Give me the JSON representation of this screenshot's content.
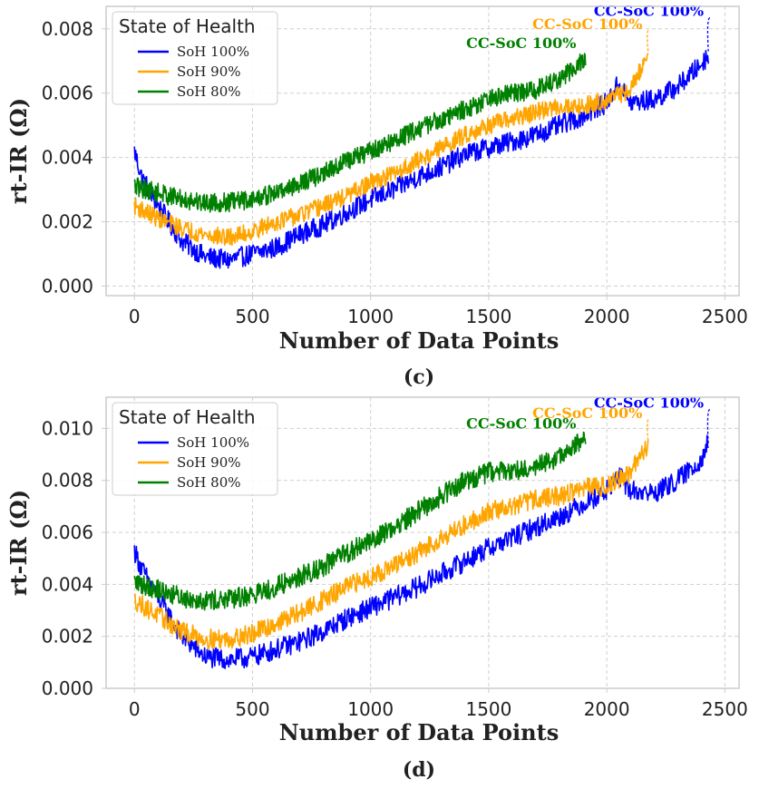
{
  "chart_data": [
    {
      "type": "line",
      "panel_label": "(c)",
      "xlabel": "Number of Data Points",
      "ylabel": "rt-IR (Ω)",
      "xlim": [
        -120,
        2560
      ],
      "ylim": [
        -0.0003,
        0.0087
      ],
      "xticks": [
        0,
        500,
        1000,
        1500,
        2000,
        2500
      ],
      "xtick_labels": [
        "0",
        "500",
        "1000",
        "1500",
        "2000",
        "2500"
      ],
      "yticks": [
        0.0,
        0.002,
        0.004,
        0.006,
        0.008
      ],
      "ytick_labels": [
        "0.000",
        "0.002",
        "0.004",
        "0.006",
        "0.008"
      ],
      "grid": true,
      "legend": {
        "title": "State of Health",
        "position": "upper-left"
      },
      "series": [
        {
          "name": "SoH 100%",
          "color": "#0000ff",
          "noise": 0.00032,
          "points": [
            [
              0,
              0.0042
            ],
            [
              30,
              0.0034
            ],
            [
              100,
              0.0025
            ],
            [
              200,
              0.0014
            ],
            [
              300,
              0.0009
            ],
            [
              400,
              0.0008
            ],
            [
              500,
              0.001
            ],
            [
              600,
              0.0012
            ],
            [
              700,
              0.0016
            ],
            [
              800,
              0.0019
            ],
            [
              900,
              0.0023
            ],
            [
              1000,
              0.0027
            ],
            [
              1100,
              0.003
            ],
            [
              1200,
              0.0034
            ],
            [
              1300,
              0.0037
            ],
            [
              1400,
              0.0041
            ],
            [
              1500,
              0.0043
            ],
            [
              1600,
              0.0045
            ],
            [
              1700,
              0.0047
            ],
            [
              1800,
              0.005
            ],
            [
              1900,
              0.0053
            ],
            [
              2000,
              0.0057
            ],
            [
              2050,
              0.0063
            ],
            [
              2100,
              0.0057
            ],
            [
              2200,
              0.0058
            ],
            [
              2300,
              0.0062
            ],
            [
              2400,
              0.0069
            ],
            [
              2430,
              0.0072
            ]
          ]
        },
        {
          "name": "SoH 90%",
          "color": "#ffa500",
          "noise": 0.00028,
          "points": [
            [
              0,
              0.0025
            ],
            [
              100,
              0.0021
            ],
            [
              200,
              0.0018
            ],
            [
              300,
              0.0016
            ],
            [
              400,
              0.0015
            ],
            [
              500,
              0.0017
            ],
            [
              600,
              0.002
            ],
            [
              700,
              0.0022
            ],
            [
              800,
              0.0025
            ],
            [
              900,
              0.0028
            ],
            [
              1000,
              0.0032
            ],
            [
              1100,
              0.0035
            ],
            [
              1200,
              0.0039
            ],
            [
              1300,
              0.0043
            ],
            [
              1400,
              0.0047
            ],
            [
              1500,
              0.005
            ],
            [
              1600,
              0.0052
            ],
            [
              1700,
              0.0054
            ],
            [
              1800,
              0.0056
            ],
            [
              1900,
              0.0056
            ],
            [
              2000,
              0.0058
            ],
            [
              2100,
              0.0061
            ],
            [
              2175,
              0.0072
            ]
          ]
        },
        {
          "name": "SoH 80%",
          "color": "#008000",
          "noise": 0.0003,
          "points": [
            [
              0,
              0.0031
            ],
            [
              100,
              0.0029
            ],
            [
              200,
              0.0027
            ],
            [
              300,
              0.0026
            ],
            [
              400,
              0.0026
            ],
            [
              500,
              0.0027
            ],
            [
              600,
              0.0029
            ],
            [
              700,
              0.0032
            ],
            [
              800,
              0.0035
            ],
            [
              900,
              0.0039
            ],
            [
              1000,
              0.0042
            ],
            [
              1100,
              0.0045
            ],
            [
              1200,
              0.0049
            ],
            [
              1300,
              0.0052
            ],
            [
              1400,
              0.0055
            ],
            [
              1500,
              0.0058
            ],
            [
              1600,
              0.006
            ],
            [
              1700,
              0.0061
            ],
            [
              1800,
              0.0064
            ],
            [
              1910,
              0.0071
            ]
          ]
        }
      ],
      "annotations": [
        {
          "text": "CC-SoC 100%",
          "color": "#008000",
          "x": 1405,
          "y": 0.0074
        },
        {
          "text": "CC-SoC 100%",
          "color": "#ffa500",
          "x": 1685,
          "y": 0.008,
          "arrow_to": [
            2175,
            0.0073
          ]
        },
        {
          "text": "CC-SoC 100%",
          "color": "#0000ff",
          "x": 1945,
          "y": 0.0084,
          "arrow_to": [
            2430,
            0.0073
          ]
        }
      ]
    },
    {
      "type": "line",
      "panel_label": "(d)",
      "xlabel": "Number of Data Points",
      "ylabel": "rt-IR (Ω)",
      "xlim": [
        -120,
        2560
      ],
      "ylim": [
        0.0,
        0.0112
      ],
      "xticks": [
        0,
        500,
        1000,
        1500,
        2000,
        2500
      ],
      "xtick_labels": [
        "0",
        "500",
        "1000",
        "1500",
        "2000",
        "2500"
      ],
      "yticks": [
        0.0,
        0.002,
        0.004,
        0.006,
        0.008,
        0.01
      ],
      "ytick_labels": [
        "0.000",
        "0.002",
        "0.004",
        "0.006",
        "0.008",
        "0.010"
      ],
      "grid": true,
      "legend": {
        "title": "State of Health",
        "position": "upper-left"
      },
      "series": [
        {
          "name": "SoH 100%",
          "color": "#0000ff",
          "noise": 0.0004,
          "points": [
            [
              0,
              0.0053
            ],
            [
              30,
              0.0046
            ],
            [
              100,
              0.0035
            ],
            [
              200,
              0.002
            ],
            [
              300,
              0.0012
            ],
            [
              400,
              0.0011
            ],
            [
              500,
              0.0012
            ],
            [
              600,
              0.0015
            ],
            [
              700,
              0.0018
            ],
            [
              800,
              0.0022
            ],
            [
              900,
              0.0027
            ],
            [
              1000,
              0.0031
            ],
            [
              1100,
              0.0035
            ],
            [
              1200,
              0.0039
            ],
            [
              1300,
              0.0044
            ],
            [
              1400,
              0.0049
            ],
            [
              1500,
              0.0054
            ],
            [
              1600,
              0.0058
            ],
            [
              1700,
              0.0062
            ],
            [
              1800,
              0.0066
            ],
            [
              1900,
              0.0071
            ],
            [
              2000,
              0.0076
            ],
            [
              2050,
              0.0082
            ],
            [
              2100,
              0.0076
            ],
            [
              2200,
              0.0075
            ],
            [
              2300,
              0.008
            ],
            [
              2400,
              0.0088
            ],
            [
              2430,
              0.0095
            ]
          ]
        },
        {
          "name": "SoH 90%",
          "color": "#ffa500",
          "noise": 0.00038,
          "points": [
            [
              0,
              0.0034
            ],
            [
              100,
              0.0028
            ],
            [
              200,
              0.0022
            ],
            [
              300,
              0.0019
            ],
            [
              400,
              0.0019
            ],
            [
              500,
              0.0021
            ],
            [
              600,
              0.0025
            ],
            [
              700,
              0.0029
            ],
            [
              800,
              0.0034
            ],
            [
              900,
              0.0039
            ],
            [
              1000,
              0.0043
            ],
            [
              1100,
              0.0047
            ],
            [
              1200,
              0.0052
            ],
            [
              1300,
              0.0058
            ],
            [
              1400,
              0.0063
            ],
            [
              1500,
              0.0068
            ],
            [
              1600,
              0.007
            ],
            [
              1700,
              0.0073
            ],
            [
              1800,
              0.0074
            ],
            [
              1900,
              0.0077
            ],
            [
              2000,
              0.0078
            ],
            [
              2100,
              0.0083
            ],
            [
              2175,
              0.0094
            ]
          ]
        },
        {
          "name": "SoH 80%",
          "color": "#008000",
          "noise": 0.0004,
          "points": [
            [
              0,
              0.0041
            ],
            [
              100,
              0.0038
            ],
            [
              200,
              0.0035
            ],
            [
              300,
              0.0034
            ],
            [
              400,
              0.0034
            ],
            [
              500,
              0.0036
            ],
            [
              600,
              0.0039
            ],
            [
              700,
              0.0043
            ],
            [
              800,
              0.0047
            ],
            [
              900,
              0.0052
            ],
            [
              1000,
              0.0057
            ],
            [
              1100,
              0.0062
            ],
            [
              1200,
              0.0068
            ],
            [
              1300,
              0.0074
            ],
            [
              1400,
              0.008
            ],
            [
              1500,
              0.0083
            ],
            [
              1600,
              0.0084
            ],
            [
              1700,
              0.0085
            ],
            [
              1800,
              0.0089
            ],
            [
              1910,
              0.0096
            ]
          ]
        }
      ],
      "annotations": [
        {
          "text": "CC-SoC 100%",
          "color": "#008000",
          "x": 1405,
          "y": 0.01
        },
        {
          "text": "CC-SoC 100%",
          "color": "#ffa500",
          "x": 1685,
          "y": 0.0104,
          "arrow_to": [
            2175,
            0.0095
          ]
        },
        {
          "text": "CC-SoC 100%",
          "color": "#0000ff",
          "x": 1945,
          "y": 0.0108,
          "arrow_to": [
            2430,
            0.0094
          ]
        }
      ]
    }
  ]
}
